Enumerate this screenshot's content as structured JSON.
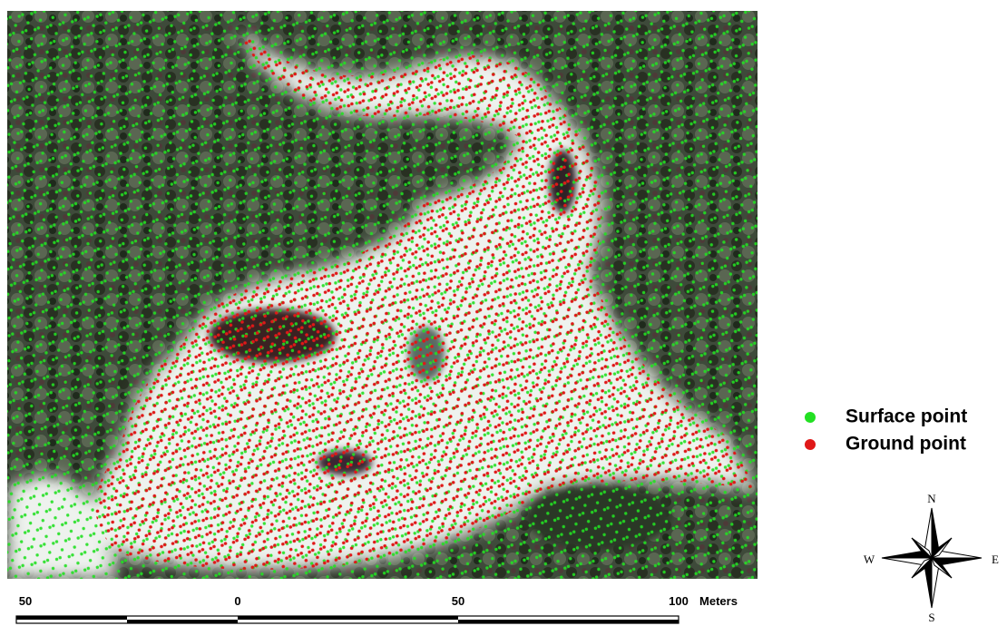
{
  "legend": {
    "items": [
      {
        "label": "Surface point",
        "color": "#22e022"
      },
      {
        "label": "Ground point",
        "color": "#e01818"
      }
    ]
  },
  "scale_bar": {
    "labels": [
      "50",
      "0",
      "50",
      "100"
    ],
    "unit": "Meters"
  },
  "compass": {
    "n": "N",
    "s": "S",
    "e": "E",
    "w": "W"
  }
}
